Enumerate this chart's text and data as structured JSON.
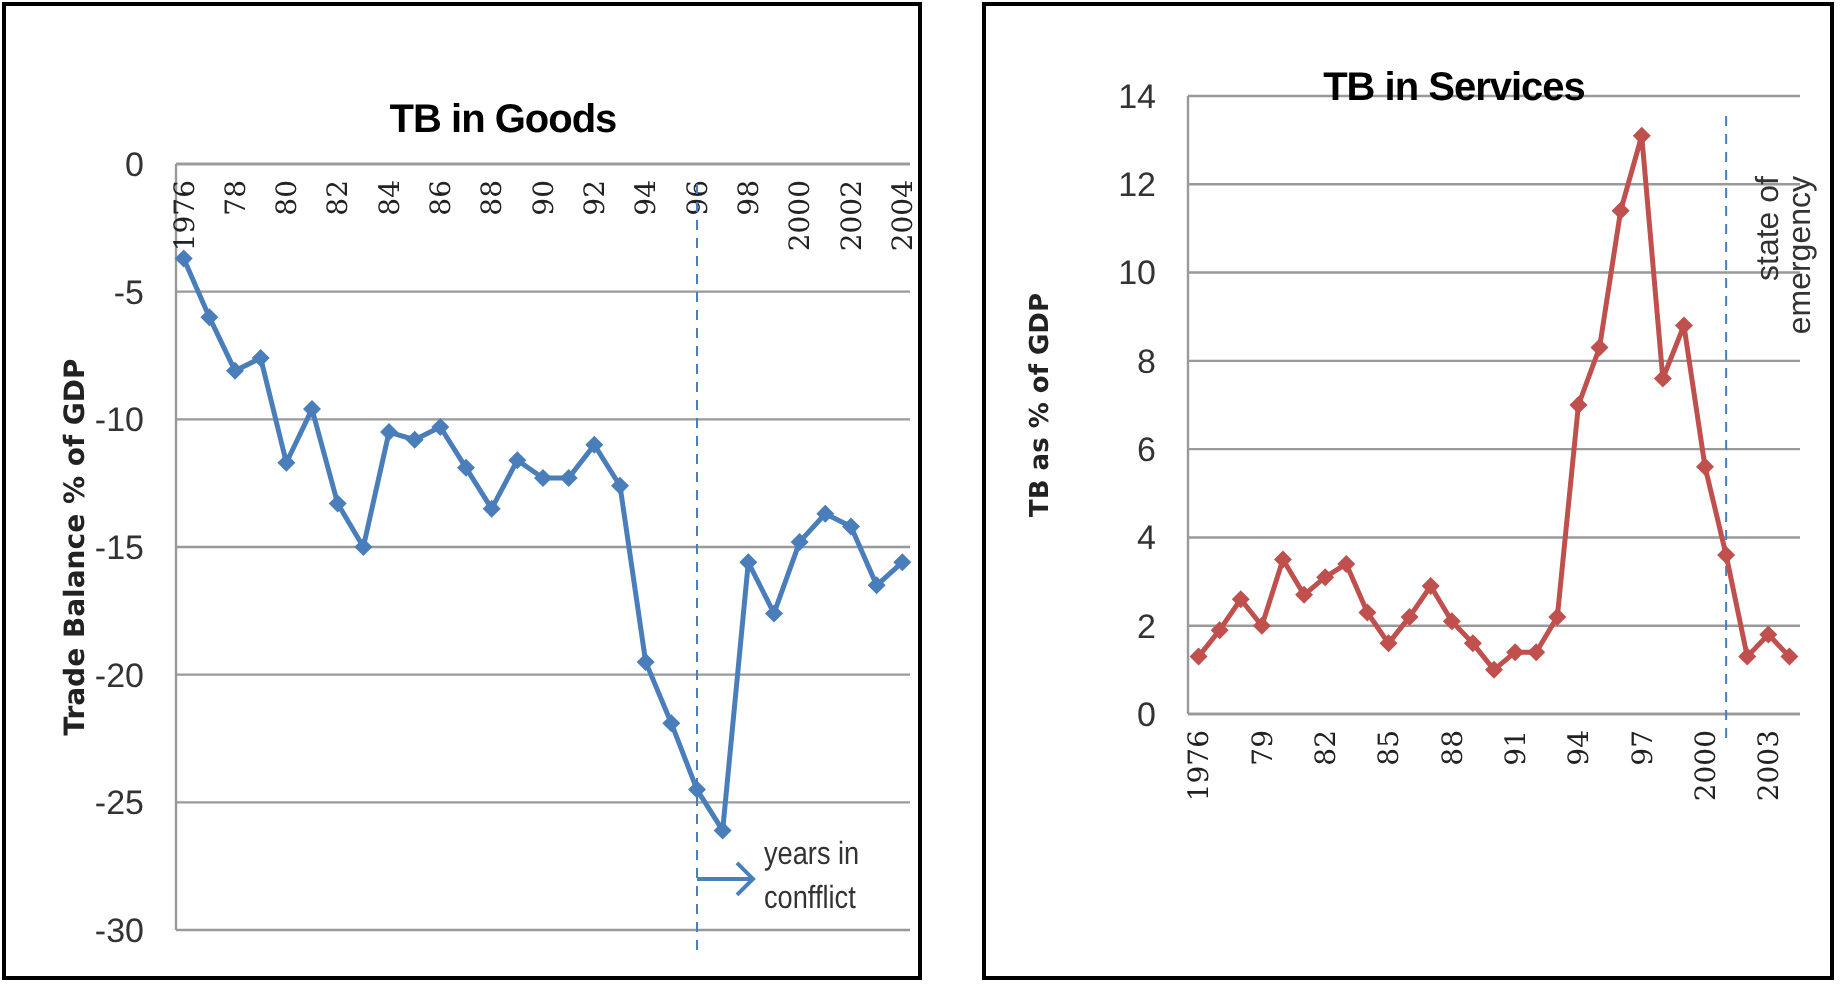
{
  "chart_data": [
    {
      "type": "line",
      "title": "TB in Goods",
      "ylabel": "Trade Balance % of GDP",
      "x": [
        1976,
        1977,
        1978,
        1979,
        1980,
        1981,
        1982,
        1983,
        1984,
        1985,
        1986,
        1987,
        1988,
        1989,
        1990,
        1991,
        1992,
        1993,
        1994,
        1995,
        1996,
        1997,
        1998,
        1999,
        2000,
        2001,
        2002,
        2003,
        2004
      ],
      "series": [
        {
          "color": "#4a7ebb",
          "values": [
            -3.7,
            -6.0,
            -8.1,
            -7.6,
            -11.7,
            -9.6,
            -13.3,
            -15.0,
            -10.5,
            -10.8,
            -10.3,
            -11.9,
            -13.5,
            -11.6,
            -12.3,
            -12.3,
            -11.0,
            -12.6,
            -19.5,
            -21.9,
            -24.5,
            -26.1,
            -15.6,
            -17.6,
            -14.8,
            -13.7,
            -14.2,
            -16.5,
            -15.6
          ]
        }
      ],
      "xlim": [
        1975.7,
        2004.3
      ],
      "xticks": [
        1976,
        {
          "value": 1978,
          "label": "78"
        },
        {
          "value": 1980,
          "label": "80"
        },
        {
          "value": 1982,
          "label": "82"
        },
        {
          "value": 1984,
          "label": "84"
        },
        {
          "value": 1986,
          "label": "86"
        },
        {
          "value": 1988,
          "label": "88"
        },
        {
          "value": 1990,
          "label": "90"
        },
        {
          "value": 1992,
          "label": "92"
        },
        {
          "value": 1994,
          "label": "94"
        },
        {
          "value": 1996,
          "label": "96"
        },
        {
          "value": 1998,
          "label": "98"
        },
        2000,
        2002,
        2004
      ],
      "ylim": [
        -30,
        0
      ],
      "yticks": [
        -30,
        -25,
        -20,
        -15,
        -10,
        -5,
        0
      ],
      "grid": "y",
      "marker": "diamond",
      "line_style": "solid",
      "ref_lines": [
        {
          "axis": "x",
          "value": 1996,
          "color": "#4a7ebb",
          "line_style": "dashed"
        }
      ],
      "annotations": [
        {
          "text": "years in confflict",
          "x": 1996,
          "y": -28
        }
      ]
    },
    {
      "type": "line",
      "title": "TB in Services",
      "ylabel": "TB as % of GDP",
      "x": [
        1976,
        1977,
        1978,
        1979,
        1980,
        1981,
        1982,
        1983,
        1984,
        1985,
        1986,
        1987,
        1988,
        1989,
        1990,
        1991,
        1992,
        1993,
        1994,
        1995,
        1996,
        1997,
        1998,
        1999,
        2000,
        2001,
        2002,
        2003,
        2004
      ],
      "series": [
        {
          "color": "#c0504d",
          "values": [
            1.3,
            1.9,
            2.6,
            2.0,
            3.5,
            2.7,
            3.1,
            3.4,
            2.3,
            1.6,
            2.2,
            2.9,
            2.1,
            1.6,
            1.0,
            1.4,
            1.4,
            2.2,
            7.0,
            8.3,
            11.4,
            13.1,
            7.6,
            8.8,
            5.6,
            3.6,
            1.3,
            1.8,
            1.3
          ]
        }
      ],
      "xlim": [
        1975.5,
        2004.5
      ],
      "xticks": [
        1976,
        {
          "value": 1979,
          "label": "79"
        },
        {
          "value": 1982,
          "label": "82"
        },
        {
          "value": 1985,
          "label": "85"
        },
        {
          "value": 1988,
          "label": "88"
        },
        {
          "value": 1991,
          "label": "91"
        },
        {
          "value": 1994,
          "label": "94"
        },
        {
          "value": 1997,
          "label": "97"
        },
        2000,
        2003
      ],
      "ylim": [
        0,
        14
      ],
      "yticks": [
        0,
        2,
        4,
        6,
        8,
        10,
        12,
        14
      ],
      "grid": "y",
      "marker": "diamond",
      "line_style": "solid",
      "ref_lines": [
        {
          "axis": "x",
          "value": 2001,
          "label": "state of emergency",
          "color": "#4a7ebb",
          "line_style": "dashed"
        }
      ]
    }
  ]
}
